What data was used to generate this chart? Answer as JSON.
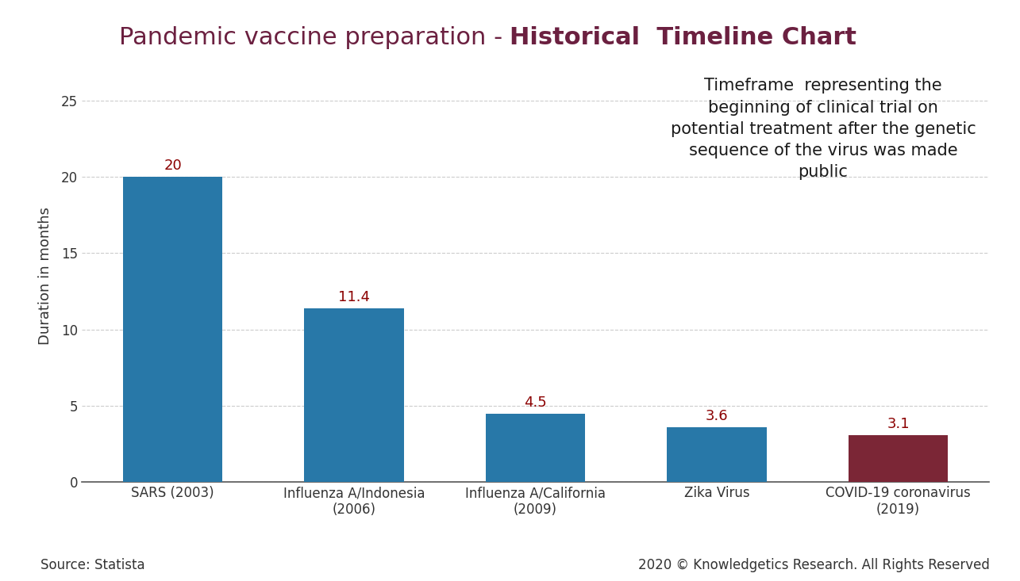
{
  "title_normal": "Pandemic vaccine preparation - ",
  "title_bold": "Historical  Timeline Chart",
  "categories": [
    "SARS (2003)",
    "Influenza A/Indonesia\n(2006)",
    "Influenza A/California\n(2009)",
    "Zika Virus",
    "COVID-19 coronavirus\n(2019)"
  ],
  "values": [
    20,
    11.4,
    4.5,
    3.6,
    3.1
  ],
  "bar_colors": [
    "#2878a8",
    "#2878a8",
    "#2878a8",
    "#2878a8",
    "#7B2636"
  ],
  "ylabel": "Duration in months",
  "ylim": [
    0,
    27
  ],
  "yticks": [
    0,
    5,
    10,
    15,
    20,
    25
  ],
  "value_color": "#8B0000",
  "annotation_text": "Timeframe  representing the\nbeginning of clinical trial on\npotential treatment after the genetic\nsequence of the virus was made\npublic",
  "source_text": "Source: Statista",
  "copyright_text": "2020 © Knowledgetics Research. All Rights Reserved",
  "title_color": "#6B2040",
  "background_color": "#FFFFFF",
  "grid_color": "#CCCCCC",
  "value_label_fontsize": 13,
  "ylabel_fontsize": 13,
  "title_fontsize": 22,
  "annotation_fontsize": 15,
  "source_fontsize": 12,
  "tick_label_fontsize": 12
}
